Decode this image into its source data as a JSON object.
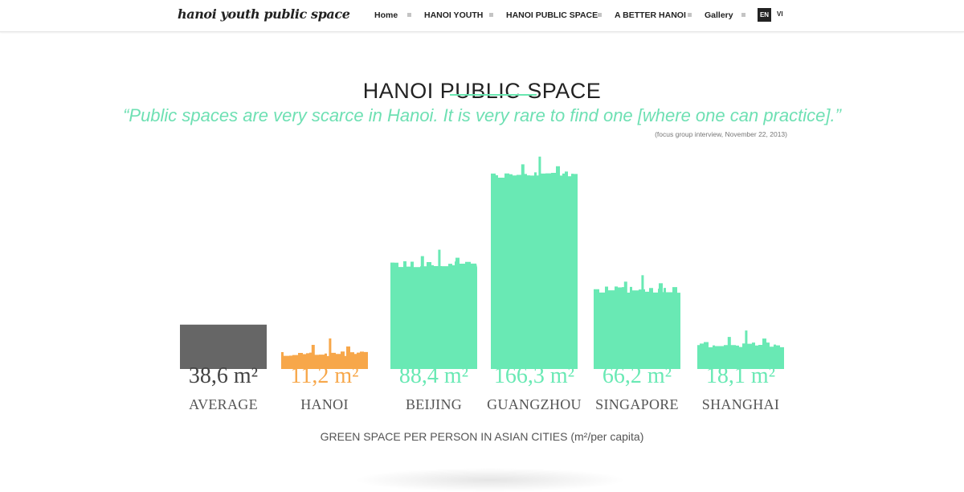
{
  "header": {
    "logo": "hanoi youth public space",
    "nav": [
      "Home",
      "HANOI YOUTH",
      "HANOI PUBLIC SPACE",
      "A BETTER HANOI",
      "Gallery"
    ],
    "languages": [
      "EN",
      "VI"
    ],
    "active_language": "EN"
  },
  "main": {
    "title": "HANOI PUBLIC SPACE",
    "quote": "“Public spaces are very scarce in Hanoi. It is very rare to find one [where one can practice].”",
    "quote_source": "(focus group interview, November 22, 2013)"
  },
  "chart_data": {
    "type": "bar",
    "categories": [
      "AVERAGE",
      "HANOI",
      "BEIJING",
      "GUANGZHOU",
      "SINGAPORE",
      "SHANGHAI"
    ],
    "values": [
      38.6,
      11.2,
      88.4,
      166.3,
      66.2,
      18.1
    ],
    "value_labels": [
      "38,6 m²",
      "11,2 m²",
      "88,4 m²",
      "166,3 m²",
      "66,2 m²",
      "18,1 m²"
    ],
    "colors": [
      "#666666",
      "#f7a74a",
      "#69e9b4",
      "#69e9b4",
      "#69e9b4",
      "#69e9b4"
    ],
    "xlabel": "GREEN SPACE PER PERSON IN ASIAN CITIES (m²/per capita)",
    "ylabel": "",
    "grid": false
  }
}
